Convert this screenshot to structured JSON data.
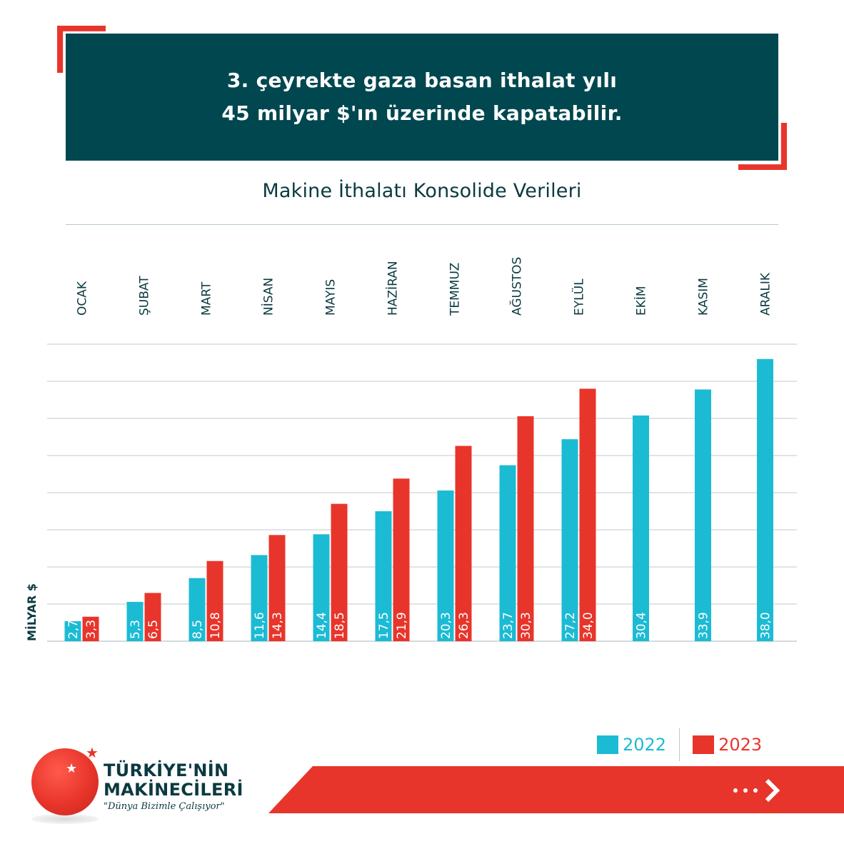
{
  "headline": {
    "line1": "3. çeyrekte gaza basan ithalat yılı",
    "line2": "45 milyar $'ın üzerinde kapatabilir."
  },
  "chart_data": {
    "type": "bar",
    "title": "Makine İthalatı Konsolide Verileri",
    "ylabel": "MİLYAR $",
    "xlabel": "",
    "ylim": [
      0,
      40
    ],
    "grid": true,
    "categories": [
      "OCAK",
      "ŞUBAT",
      "MART",
      "NİSAN",
      "MAYIS",
      "HAZİRAN",
      "TEMMUZ",
      "AĞUSTOS",
      "EYLÜL",
      "EKİM",
      "KASIM",
      "ARALIK"
    ],
    "series": [
      {
        "name": "2022",
        "color": "#1cbbd4",
        "values": [
          2.7,
          5.3,
          8.5,
          11.6,
          14.4,
          17.5,
          20.3,
          23.7,
          27.2,
          30.4,
          33.9,
          38.0
        ],
        "labels": [
          "2,7",
          "5,3",
          "8,5",
          "11,6",
          "14,4",
          "17,5",
          "20,3",
          "23,7",
          "27,2",
          "30,4",
          "33,9",
          "38,0"
        ]
      },
      {
        "name": "2023",
        "color": "#e8352b",
        "values": [
          3.3,
          6.5,
          10.8,
          14.3,
          18.5,
          21.9,
          26.3,
          30.3,
          34.0,
          null,
          null,
          null
        ],
        "labels": [
          "3,3",
          "6,5",
          "10,8",
          "14,3",
          "18,5",
          "21,9",
          "26,3",
          "30,3",
          "34,0",
          null,
          null,
          null
        ]
      }
    ],
    "legend_position": "bottom-right"
  },
  "logo": {
    "line1": "TÜRKİYE'NİN",
    "line2": "MAKİNECİLERİ",
    "slogan": "\"Dünya Bizimle Çalışıyor\""
  },
  "colors": {
    "dark_teal": "#00474f",
    "accent_red": "#e8352b",
    "cyan": "#1cbbd4",
    "grid": "#d5dcdd"
  },
  "icons": {
    "next": "dots-chevron-right-icon",
    "star": "star-icon"
  }
}
